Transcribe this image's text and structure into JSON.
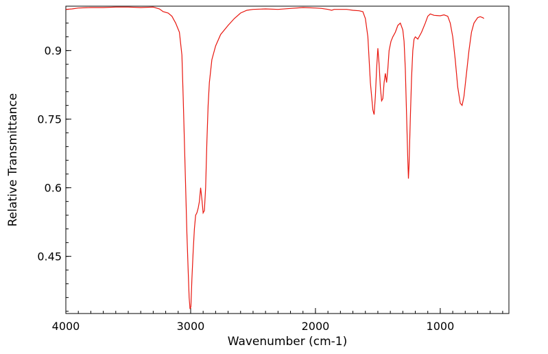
{
  "chart_data": {
    "type": "line",
    "title": "",
    "xlabel": "Wavenumber (cm-1)",
    "ylabel": "Relative Transmittance",
    "xlim": [
      4000,
      450
    ],
    "ylim": [
      0.325,
      0.997
    ],
    "x_reversed": true,
    "grid": false,
    "legend": "none",
    "line_color": "#e8140c",
    "x_ticks": [
      {
        "value": 4000,
        "label": "4000"
      },
      {
        "value": 3000,
        "label": "3000"
      },
      {
        "value": 2000,
        "label": "2000"
      },
      {
        "value": 1000,
        "label": "1000"
      }
    ],
    "y_ticks": [
      {
        "value": 0.45,
        "label": "0.45"
      },
      {
        "value": 0.6,
        "label": "0.6"
      },
      {
        "value": 0.75,
        "label": "0.75"
      },
      {
        "value": 0.9,
        "label": "0.9"
      }
    ],
    "x_minor_step": 100,
    "y_minor_step": 0.03,
    "series": [
      {
        "name": "",
        "points": [
          [
            4000,
            0.99
          ],
          [
            3950,
            0.991
          ],
          [
            3900,
            0.993
          ],
          [
            3800,
            0.994
          ],
          [
            3700,
            0.994
          ],
          [
            3600,
            0.995
          ],
          [
            3500,
            0.995
          ],
          [
            3400,
            0.994
          ],
          [
            3300,
            0.995
          ],
          [
            3250,
            0.991
          ],
          [
            3220,
            0.985
          ],
          [
            3180,
            0.982
          ],
          [
            3150,
            0.975
          ],
          [
            3120,
            0.96
          ],
          [
            3090,
            0.94
          ],
          [
            3070,
            0.89
          ],
          [
            3060,
            0.8
          ],
          [
            3050,
            0.7
          ],
          [
            3040,
            0.6
          ],
          [
            3030,
            0.5
          ],
          [
            3020,
            0.42
          ],
          [
            3012,
            0.36
          ],
          [
            3005,
            0.335
          ],
          [
            2998,
            0.34
          ],
          [
            2990,
            0.4
          ],
          [
            2980,
            0.46
          ],
          [
            2970,
            0.51
          ],
          [
            2960,
            0.54
          ],
          [
            2950,
            0.545
          ],
          [
            2940,
            0.555
          ],
          [
            2930,
            0.57
          ],
          [
            2920,
            0.6
          ],
          [
            2910,
            0.575
          ],
          [
            2900,
            0.545
          ],
          [
            2890,
            0.55
          ],
          [
            2880,
            0.6
          ],
          [
            2870,
            0.7
          ],
          [
            2860,
            0.78
          ],
          [
            2850,
            0.83
          ],
          [
            2830,
            0.88
          ],
          [
            2800,
            0.91
          ],
          [
            2760,
            0.935
          ],
          [
            2700,
            0.955
          ],
          [
            2650,
            0.97
          ],
          [
            2600,
            0.982
          ],
          [
            2550,
            0.988
          ],
          [
            2500,
            0.99
          ],
          [
            2400,
            0.991
          ],
          [
            2300,
            0.99
          ],
          [
            2200,
            0.992
          ],
          [
            2100,
            0.994
          ],
          [
            2000,
            0.993
          ],
          [
            1950,
            0.992
          ],
          [
            1900,
            0.99
          ],
          [
            1870,
            0.988
          ],
          [
            1850,
            0.99
          ],
          [
            1800,
            0.99
          ],
          [
            1750,
            0.99
          ],
          [
            1700,
            0.988
          ],
          [
            1650,
            0.987
          ],
          [
            1620,
            0.985
          ],
          [
            1600,
            0.97
          ],
          [
            1580,
            0.93
          ],
          [
            1570,
            0.88
          ],
          [
            1560,
            0.83
          ],
          [
            1550,
            0.8
          ],
          [
            1540,
            0.77
          ],
          [
            1530,
            0.76
          ],
          [
            1520,
            0.8
          ],
          [
            1510,
            0.86
          ],
          [
            1500,
            0.905
          ],
          [
            1490,
            0.87
          ],
          [
            1480,
            0.82
          ],
          [
            1470,
            0.79
          ],
          [
            1460,
            0.795
          ],
          [
            1450,
            0.83
          ],
          [
            1440,
            0.85
          ],
          [
            1430,
            0.83
          ],
          [
            1420,
            0.86
          ],
          [
            1410,
            0.9
          ],
          [
            1395,
            0.92
          ],
          [
            1380,
            0.93
          ],
          [
            1360,
            0.94
          ],
          [
            1340,
            0.955
          ],
          [
            1320,
            0.96
          ],
          [
            1300,
            0.945
          ],
          [
            1290,
            0.92
          ],
          [
            1280,
            0.86
          ],
          [
            1270,
            0.76
          ],
          [
            1260,
            0.66
          ],
          [
            1255,
            0.62
          ],
          [
            1250,
            0.65
          ],
          [
            1240,
            0.75
          ],
          [
            1230,
            0.84
          ],
          [
            1220,
            0.9
          ],
          [
            1210,
            0.925
          ],
          [
            1200,
            0.93
          ],
          [
            1180,
            0.925
          ],
          [
            1150,
            0.94
          ],
          [
            1120,
            0.96
          ],
          [
            1100,
            0.975
          ],
          [
            1080,
            0.98
          ],
          [
            1050,
            0.977
          ],
          [
            1000,
            0.976
          ],
          [
            970,
            0.978
          ],
          [
            940,
            0.975
          ],
          [
            920,
            0.96
          ],
          [
            900,
            0.93
          ],
          [
            880,
            0.88
          ],
          [
            860,
            0.82
          ],
          [
            840,
            0.785
          ],
          [
            825,
            0.78
          ],
          [
            810,
            0.8
          ],
          [
            790,
            0.85
          ],
          [
            770,
            0.9
          ],
          [
            750,
            0.94
          ],
          [
            730,
            0.96
          ],
          [
            700,
            0.972
          ],
          [
            680,
            0.974
          ],
          [
            660,
            0.972
          ],
          [
            650,
            0.97
          ]
        ]
      }
    ]
  }
}
